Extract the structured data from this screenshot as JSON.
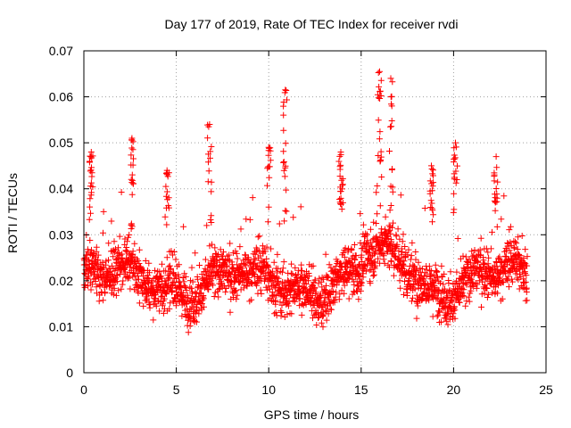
{
  "chart_data": {
    "type": "scatter",
    "title": "Day 177 of 2019, Rate Of TEC Index for receiver rvdi",
    "xlabel": "GPS time / hours",
    "ylabel": "ROTI / TECUs",
    "xlim": [
      0,
      25
    ],
    "ylim": [
      0,
      0.07
    ],
    "x_ticks": [
      0,
      5,
      10,
      15,
      20,
      25
    ],
    "y_ticks": [
      0,
      0.01,
      0.02,
      0.03,
      0.04,
      0.05,
      0.06,
      0.07
    ],
    "x_tick_labels": [
      "0",
      "5",
      "10",
      "15",
      "20",
      "25"
    ],
    "y_tick_labels": [
      "0",
      "0.01",
      "0.02",
      "0.03",
      "0.04",
      "0.05",
      "0.06",
      "0.07"
    ],
    "grid": true,
    "marker": "plus",
    "color": "#ff0000",
    "series": [
      {
        "name": "ROTI",
        "x_range": [
          0,
          24
        ],
        "typical_range": [
          0.01,
          0.035
        ],
        "baseline": 0.02,
        "notes": "dense scatter, one point per sample across 24 hours"
      }
    ],
    "peaks": [
      {
        "x": 0.4,
        "y": 0.048
      },
      {
        "x": 2.6,
        "y": 0.051
      },
      {
        "x": 4.5,
        "y": 0.044
      },
      {
        "x": 6.8,
        "y": 0.054
      },
      {
        "x": 10.0,
        "y": 0.049
      },
      {
        "x": 10.9,
        "y": 0.0615
      },
      {
        "x": 13.9,
        "y": 0.048
      },
      {
        "x": 16.0,
        "y": 0.0655
      },
      {
        "x": 16.6,
        "y": 0.064
      },
      {
        "x": 18.8,
        "y": 0.045
      },
      {
        "x": 20.1,
        "y": 0.05
      },
      {
        "x": 22.3,
        "y": 0.047
      }
    ]
  }
}
